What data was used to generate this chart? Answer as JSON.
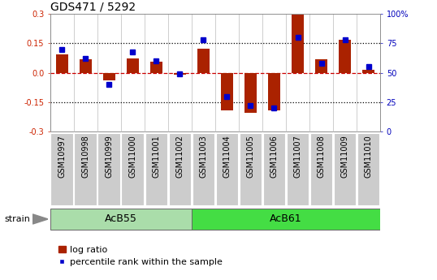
{
  "title": "GDS471 / 5292",
  "samples": [
    "GSM10997",
    "GSM10998",
    "GSM10999",
    "GSM11000",
    "GSM11001",
    "GSM11002",
    "GSM11003",
    "GSM11004",
    "GSM11005",
    "GSM11006",
    "GSM11007",
    "GSM11008",
    "GSM11009",
    "GSM11010"
  ],
  "log_ratio": [
    0.095,
    0.07,
    -0.04,
    0.075,
    0.055,
    -0.01,
    0.125,
    -0.19,
    -0.205,
    -0.19,
    0.295,
    0.07,
    0.17,
    0.015
  ],
  "percentile_rank": [
    70,
    62,
    40,
    68,
    60,
    49,
    78,
    30,
    22,
    20,
    80,
    58,
    78,
    55
  ],
  "groups": [
    {
      "label": "AcB55",
      "start": 0,
      "end": 5,
      "color": "#aaddaa"
    },
    {
      "label": "AcB61",
      "start": 6,
      "end": 13,
      "color": "#44dd44"
    }
  ],
  "bar_color": "#aa2200",
  "percentile_color": "#0000cc",
  "ylim_left": [
    -0.3,
    0.3
  ],
  "ylim_right": [
    0,
    100
  ],
  "yticks_left": [
    -0.3,
    -0.15,
    0.0,
    0.15,
    0.3
  ],
  "yticks_right": [
    0,
    25,
    50,
    75,
    100
  ],
  "hlines_dotted": [
    0.15,
    -0.15
  ],
  "hline_zero_color": "#cc0000",
  "bar_width": 0.5,
  "percentile_marker_size": 5,
  "title_fontsize": 10,
  "tick_fontsize": 7,
  "legend_fontsize": 8,
  "group_label_fontsize": 9,
  "strain_label": "strain",
  "xlabel_bg": "#cccccc",
  "group1_color": "#bbddbb",
  "group2_color": "#55ee55"
}
